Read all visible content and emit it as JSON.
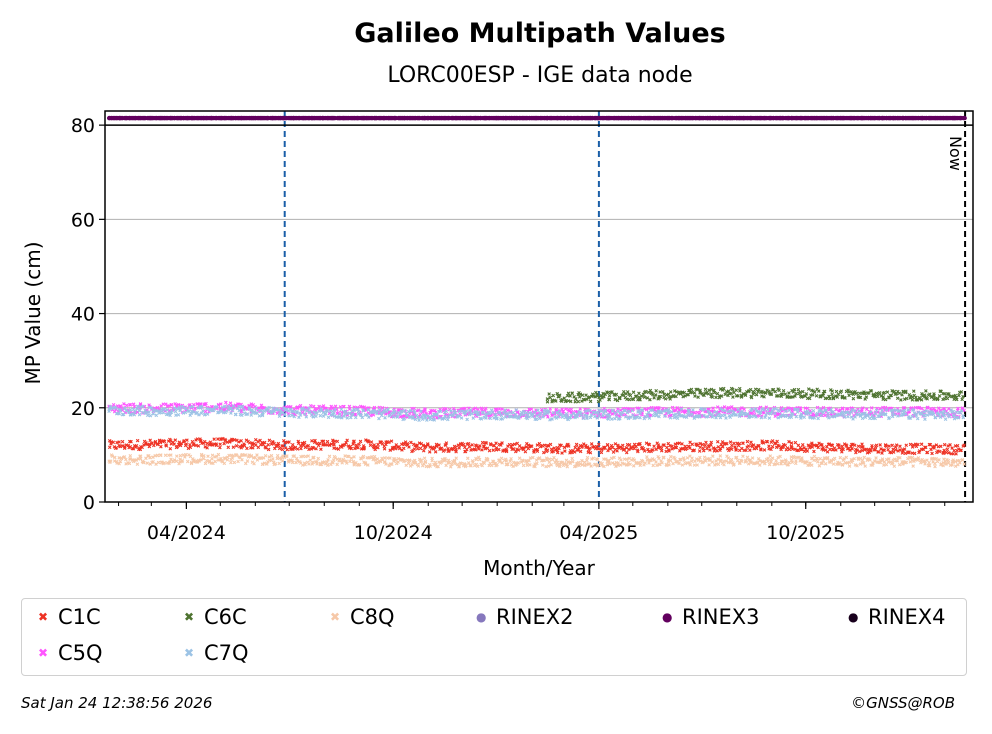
{
  "chart_data": {
    "type": "scatter",
    "title": "Galileo Multipath Values",
    "subtitle": "LORC00ESP - IGE data node",
    "xlabel": "Month/Year",
    "ylabel": "MP Value (cm)",
    "ylim": [
      0,
      83
    ],
    "xlim": [
      "2024-01-20",
      "2026-02-26"
    ],
    "x_ticks": [
      "04/2024",
      "10/2024",
      "04/2025",
      "10/2025"
    ],
    "y_ticks": [
      "0",
      "20",
      "40",
      "60",
      "80"
    ],
    "grid": "horizontal",
    "now_label": "Now",
    "now_date": "2026-02-19",
    "vertical_markers": [
      "2024-06-27",
      "2025-04-01"
    ],
    "series": [
      {
        "name": "C1C",
        "color": "#ee3224",
        "marker": "x",
        "x": [
          "2024-01-24",
          "2024-03-01",
          "2024-05-01",
          "2024-07-01",
          "2024-09-01",
          "2024-11-01",
          "2025-01-01",
          "2025-03-01",
          "2025-05-01",
          "2025-07-01",
          "2025-09-01",
          "2025-11-01",
          "2026-01-01",
          "2026-02-18"
        ],
        "y": [
          12.0,
          12.2,
          12.5,
          12.0,
          12.3,
          11.5,
          11.8,
          11.3,
          11.5,
          11.8,
          12.0,
          11.5,
          11.3,
          11.2
        ]
      },
      {
        "name": "C5Q",
        "color": "#ff55ff",
        "marker": "x",
        "x": [
          "2024-01-24",
          "2024-03-01",
          "2024-05-01",
          "2024-07-01",
          "2024-09-01",
          "2024-11-01",
          "2025-01-01",
          "2025-03-01",
          "2025-05-01",
          "2025-07-01",
          "2025-09-01",
          "2025-11-01",
          "2026-01-01",
          "2026-02-18"
        ],
        "y": [
          20.0,
          19.8,
          20.2,
          19.5,
          19.3,
          18.8,
          19.0,
          18.8,
          19.0,
          19.2,
          19.2,
          19.0,
          19.2,
          19.0
        ]
      },
      {
        "name": "C6C",
        "color": "#4e7330",
        "marker": "x",
        "x": [
          "2025-02-15",
          "2025-04-01",
          "2025-06-01",
          "2025-08-01",
          "2025-10-01",
          "2025-12-01",
          "2026-02-18"
        ],
        "y": [
          22.0,
          22.3,
          22.8,
          23.2,
          23.0,
          22.7,
          22.5
        ]
      },
      {
        "name": "C7Q",
        "color": "#9cc3e5",
        "marker": "x",
        "x": [
          "2024-01-24",
          "2024-03-01",
          "2024-05-01",
          "2024-07-01",
          "2024-09-01",
          "2024-11-01",
          "2025-01-01",
          "2025-03-01",
          "2025-05-01",
          "2025-07-01",
          "2025-09-01",
          "2025-11-01",
          "2026-01-01",
          "2026-02-18"
        ],
        "y": [
          19.5,
          19.3,
          19.5,
          19.0,
          18.8,
          18.3,
          18.6,
          18.4,
          18.6,
          18.8,
          18.8,
          18.6,
          18.6,
          18.5
        ]
      },
      {
        "name": "C8Q",
        "color": "#f6c8a8",
        "marker": "x",
        "x": [
          "2024-01-24",
          "2024-03-01",
          "2024-05-01",
          "2024-07-01",
          "2024-09-01",
          "2024-11-01",
          "2025-01-01",
          "2025-03-01",
          "2025-05-01",
          "2025-07-01",
          "2025-09-01",
          "2025-11-01",
          "2026-01-01",
          "2026-02-18"
        ],
        "y": [
          9.0,
          9.0,
          9.2,
          8.8,
          8.8,
          8.3,
          8.6,
          8.4,
          8.6,
          8.8,
          8.8,
          8.6,
          8.5,
          8.4
        ]
      },
      {
        "name": "RINEX2",
        "color": "#8678bd",
        "marker": "dot",
        "x": [],
        "y": []
      },
      {
        "name": "RINEX3",
        "color": "#62005e",
        "marker": "dot",
        "x": [
          "2024-01-24",
          "2026-02-18"
        ],
        "y": [
          81.5,
          81.5
        ]
      },
      {
        "name": "RINEX4",
        "color": "#18001c",
        "marker": "dot",
        "x": [],
        "y": []
      }
    ]
  },
  "legend": {
    "items": [
      {
        "label": "C1C",
        "symbol": "✖",
        "color": "#ee3224"
      },
      {
        "label": "C6C",
        "symbol": "✖",
        "color": "#4e7330"
      },
      {
        "label": "C8Q",
        "symbol": "✖",
        "color": "#f6c8a8"
      },
      {
        "label": "RINEX2",
        "symbol": "●",
        "color": "#8678bd"
      },
      {
        "label": "RINEX3",
        "symbol": "●",
        "color": "#62005e"
      },
      {
        "label": "RINEX4",
        "symbol": "●",
        "color": "#18001c"
      },
      {
        "label": "C5Q",
        "symbol": "✖",
        "color": "#ff55ff"
      },
      {
        "label": "C7Q",
        "symbol": "✖",
        "color": "#9cc3e5"
      }
    ]
  },
  "footer": {
    "timestamp": "Sat Jan 24 12:38:56 2026",
    "credit": "©GNSS@ROB"
  }
}
